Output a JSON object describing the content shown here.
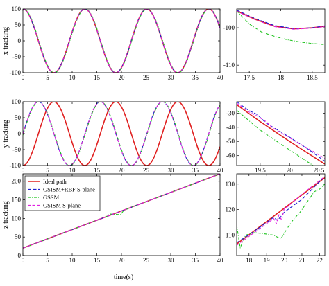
{
  "figure": {
    "xlabel": "time(s)"
  },
  "legend": [
    {
      "name": "Ideal path",
      "color": "#e02020",
      "dash": ""
    },
    {
      "name": "GSISM+RBF S-plane",
      "color": "#1f1fd0",
      "dash": "5,2.5"
    },
    {
      "name": "GSSM",
      "color": "#22c422",
      "dash": "4,2,1,2"
    },
    {
      "name": "GSISM S-plane",
      "color": "#e020e0",
      "dash": "4,2.5"
    }
  ],
  "chart_data": [
    {
      "id": "x_main",
      "type": "line",
      "ylabel": "x tracking",
      "xlim": [
        0,
        40
      ],
      "ylim": [
        -100,
        100
      ],
      "xticks": [
        0,
        5,
        10,
        15,
        20,
        25,
        30,
        35,
        40
      ],
      "yticks": [
        -100,
        -50,
        0,
        50,
        100
      ],
      "series": [
        {
          "name": "Ideal path",
          "color": "#e02020",
          "func": "sin",
          "amp": 100,
          "omega": 0.5,
          "phase": 1.5708
        },
        {
          "name": "GSISM+RBF S-plane",
          "color": "#1f1fd0",
          "func": "sin",
          "amp": 100,
          "omega": 0.5,
          "phase": 1.5708
        },
        {
          "name": "GSSM",
          "color": "#22c422",
          "func": "sin",
          "amp": 100,
          "omega": 0.5,
          "phase": 1.5208
        },
        {
          "name": "GSISM S-plane",
          "color": "#e020e0",
          "func": "sin",
          "amp": 100,
          "omega": 0.5,
          "phase": 1.5608
        }
      ]
    },
    {
      "id": "x_zoom",
      "type": "line",
      "xlim": [
        17.3,
        18.7
      ],
      "ylim": [
        -112,
        -95
      ],
      "xticks": [
        17.5,
        18,
        18.5
      ],
      "xticklabels": [
        "17.5",
        "18",
        "18.5"
      ],
      "yticks": [
        -110,
        -100
      ],
      "yticklabels": [
        "-110",
        "-100"
      ],
      "series": [
        {
          "name": "Ideal path",
          "color": "#e02020",
          "x": [
            17.3,
            17.6,
            17.9,
            18.2,
            18.5,
            18.7
          ],
          "y": [
            -95.5,
            -97.8,
            -99.6,
            -100.3,
            -100.0,
            -99.6
          ]
        },
        {
          "name": "GSISM+RBF S-plane",
          "color": "#1f1fd0",
          "x": [
            17.3,
            17.6,
            17.9,
            18.2,
            18.5,
            18.7
          ],
          "y": [
            -95.3,
            -97.6,
            -99.4,
            -100.2,
            -100.0,
            -99.5
          ]
        },
        {
          "name": "GSSM",
          "color": "#22c422",
          "x": [
            17.3,
            17.5,
            17.7,
            17.9,
            18.1,
            18.3,
            18.5,
            18.7
          ],
          "y": [
            -95.5,
            -99.0,
            -101.2,
            -102.3,
            -103.2,
            -103.8,
            -104.2,
            -104.5
          ]
        },
        {
          "name": "GSISM S-plane",
          "color": "#e020e0",
          "x": [
            17.3,
            17.6,
            17.9,
            18.2,
            18.5,
            18.7
          ],
          "y": [
            -95.6,
            -97.9,
            -99.7,
            -100.4,
            -100.1,
            -99.7
          ]
        }
      ]
    },
    {
      "id": "y_main",
      "type": "line",
      "ylabel": "y tracking",
      "xlim": [
        0,
        40
      ],
      "ylim": [
        -100,
        100
      ],
      "xticks": [
        0,
        5,
        10,
        15,
        20,
        25,
        30,
        35,
        40
      ],
      "yticks": [
        -100,
        -50,
        0,
        50,
        100
      ],
      "series": [
        {
          "name": "Ideal path",
          "color": "#e02020",
          "func": "sin",
          "amp": 100,
          "omega": 0.5,
          "phase": 1.5708,
          "shift": 3.1416
        },
        {
          "name": "GSISM+RBF S-plane",
          "color": "#1f1fd0",
          "func": "sin",
          "amp": 100,
          "omega": 0.5,
          "phase": 0.0
        },
        {
          "name": "GSSM",
          "color": "#22c422",
          "func": "sin",
          "amp": 100,
          "omega": 0.5,
          "phase": -0.05
        },
        {
          "name": "GSISM S-plane",
          "color": "#e020e0",
          "func": "sin",
          "amp": 100,
          "omega": 0.5,
          "phase": -0.01
        }
      ]
    },
    {
      "id": "y_zoom",
      "type": "line",
      "xlim": [
        19.1,
        20.6
      ],
      "ylim": [
        -67,
        -22
      ],
      "xticks": [
        19.5,
        20,
        20.5
      ],
      "xticklabels": [
        "19.5",
        "20",
        "20.5"
      ],
      "yticks": [
        -60,
        -50,
        -40,
        -30
      ],
      "yticklabels": [
        "-60",
        "-50",
        "-40",
        "-30"
      ],
      "series": [
        {
          "name": "Ideal path",
          "color": "#e02020",
          "x": [
            19.1,
            19.5,
            20.0,
            20.6
          ],
          "y": [
            -24,
            -36,
            -50,
            -66
          ]
        },
        {
          "name": "GSISM+RBF S-plane",
          "color": "#1f1fd0",
          "x": [
            19.1,
            19.3,
            19.45,
            19.6,
            19.8,
            20.0,
            20.3,
            20.6
          ],
          "y": [
            -22,
            -28,
            -31,
            -37,
            -42,
            -47,
            -55,
            -64
          ]
        },
        {
          "name": "GSSM",
          "color": "#22c422",
          "x": [
            19.1,
            19.5,
            20.0,
            20.4
          ],
          "y": [
            -28,
            -42,
            -56,
            -67
          ]
        },
        {
          "name": "GSISM S-plane",
          "color": "#e020e0",
          "x": [
            19.1,
            19.3,
            19.45,
            19.6,
            19.7,
            19.9,
            20.1,
            20.4,
            20.6
          ],
          "y": [
            -23,
            -29,
            -32,
            -36,
            -40,
            -45,
            -50,
            -57,
            -62
          ]
        }
      ]
    },
    {
      "id": "z_main",
      "type": "line",
      "ylabel": "z tracking",
      "xlim": [
        0,
        40
      ],
      "ylim": [
        0,
        220
      ],
      "xticks": [
        0,
        5,
        10,
        15,
        20,
        25,
        30,
        35,
        40
      ],
      "yticks": [
        0,
        50,
        100,
        150,
        200
      ],
      "series": [
        {
          "name": "Ideal path",
          "color": "#e02020",
          "x": [
            0,
            40
          ],
          "y": [
            20,
            220
          ]
        },
        {
          "name": "GSISM+RBF S-plane",
          "color": "#1f1fd0",
          "x": [
            0,
            40
          ],
          "y": [
            20,
            220
          ]
        },
        {
          "name": "GSSM",
          "color": "#22c422",
          "x": [
            0,
            17,
            17.5,
            19.8,
            20.5,
            22,
            40
          ],
          "y": [
            20,
            105,
            112,
            110,
            122,
            130,
            220
          ]
        },
        {
          "name": "GSISM S-plane",
          "color": "#e020e0",
          "x": [
            0,
            40
          ],
          "y": [
            20,
            220
          ]
        }
      ]
    },
    {
      "id": "z_zoom",
      "type": "line",
      "xlim": [
        17.3,
        22.3
      ],
      "ylim": [
        102,
        134
      ],
      "xticks": [
        18,
        19,
        20,
        21,
        22
      ],
      "xticklabels": [
        "18",
        "19",
        "20",
        "21",
        "22"
      ],
      "yticks": [
        110,
        120,
        130
      ],
      "yticklabels": [
        "110",
        "120",
        "130"
      ],
      "series": [
        {
          "name": "Ideal path",
          "color": "#e02020",
          "x": [
            17.3,
            22.3
          ],
          "y": [
            106.5,
            132.5
          ]
        },
        {
          "name": "GSISM+RBF S-plane",
          "color": "#1f1fd0",
          "x": [
            17.3,
            18.5,
            19.4,
            19.6,
            19.8,
            20.0,
            21.0,
            22.3
          ],
          "y": [
            107.0,
            112.5,
            117.0,
            115.8,
            117.2,
            119.0,
            124.0,
            133.0
          ]
        },
        {
          "name": "GSSM",
          "color": "#22c422",
          "x": [
            17.3,
            17.5,
            17.8,
            18.3,
            18.9,
            19.4,
            19.8,
            20.2,
            20.5,
            20.9,
            21.3,
            21.7,
            22.0,
            22.3
          ],
          "y": [
            114,
            105,
            110,
            111,
            110.5,
            110,
            108.5,
            113,
            116,
            119,
            123,
            127,
            128,
            130
          ]
        },
        {
          "name": "GSISM S-plane",
          "color": "#e020e0",
          "x": [
            17.3,
            18.5,
            19.4,
            19.55,
            19.7,
            19.85,
            20.0,
            20.2,
            21.0,
            22.3
          ],
          "y": [
            106.0,
            112.0,
            116.5,
            114.5,
            118.0,
            115.8,
            120.5,
            121.2,
            126.0,
            133.0
          ]
        }
      ]
    }
  ]
}
